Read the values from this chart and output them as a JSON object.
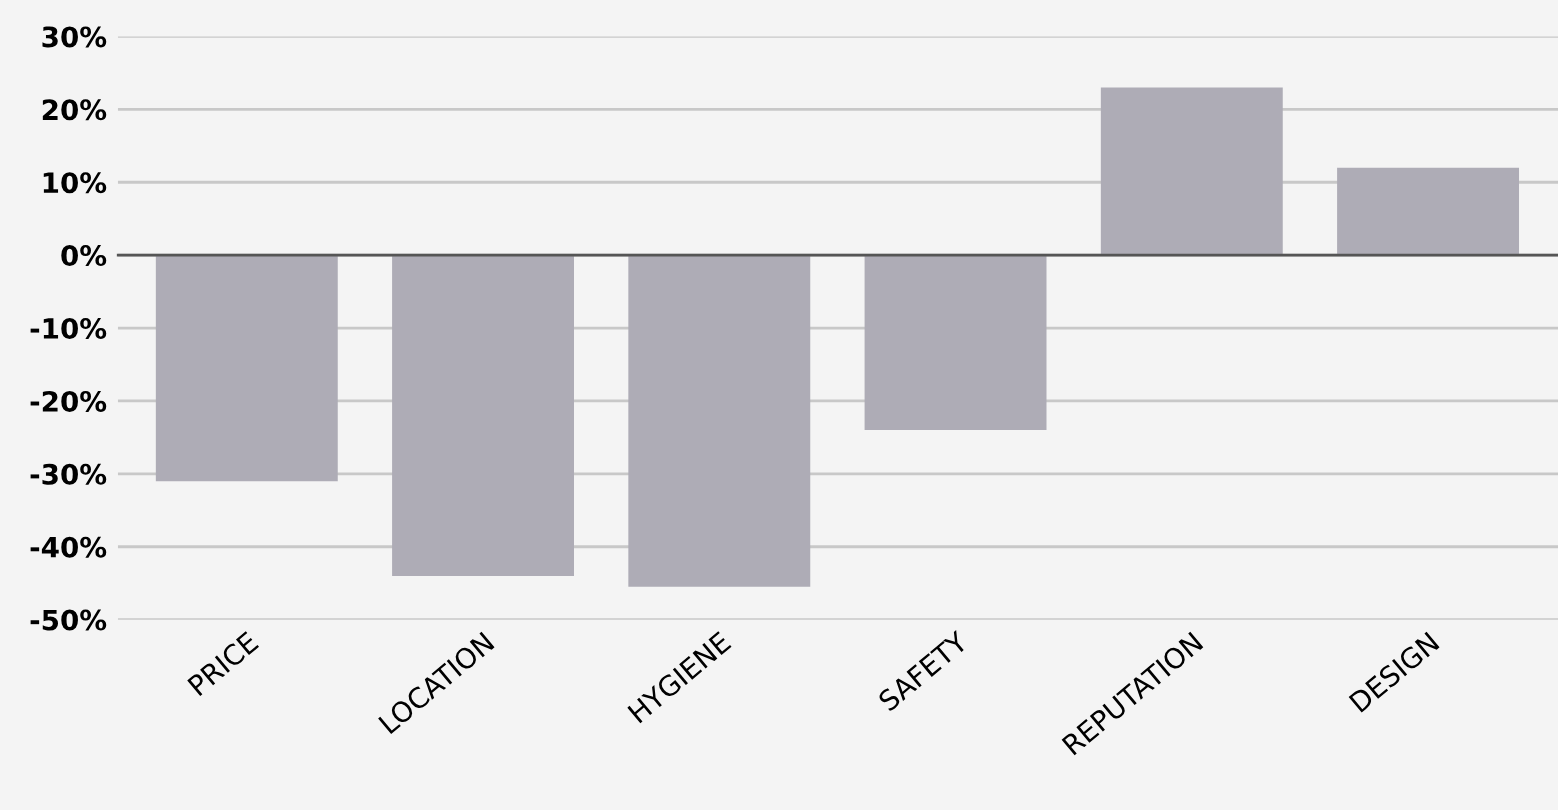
{
  "chart_data": {
    "type": "bar",
    "categories": [
      "PRICE",
      "LOCATION",
      "HYGIENE",
      "SAFETY",
      "REPUTATION",
      "DESIGN"
    ],
    "values": [
      -31,
      -44,
      -45.5,
      -24,
      23,
      12
    ],
    "color": "#aeacb6",
    "ylim": [
      -50,
      30
    ],
    "yticks": [
      {
        "value": 30,
        "label": "30%"
      },
      {
        "value": 20,
        "label": "20%"
      },
      {
        "value": 10,
        "label": "10%"
      },
      {
        "value": 0,
        "label": "0%"
      },
      {
        "value": -10,
        "label": "-10%"
      },
      {
        "value": -20,
        "label": "-20%"
      },
      {
        "value": -30,
        "label": "-30%"
      },
      {
        "value": -40,
        "label": "-40%"
      },
      {
        "value": -50,
        "label": "-50%"
      }
    ],
    "ref_lines": [
      {
        "axis": "y",
        "value": 0,
        "label": null,
        "color": "#555555"
      }
    ],
    "grid": "y",
    "legend": false
  }
}
